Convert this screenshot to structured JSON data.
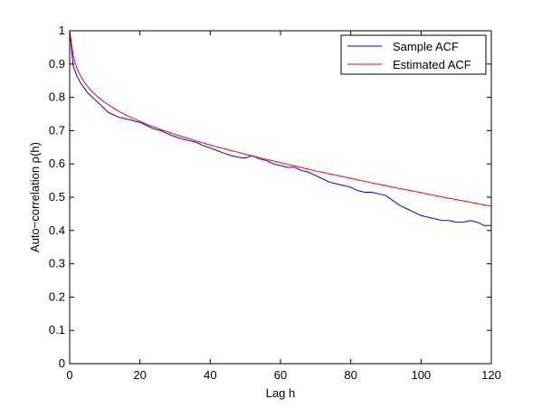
{
  "chart_data": {
    "type": "line",
    "title": "",
    "xlabel": "Lag h",
    "ylabel": "Auto−correlation ρ(h)",
    "xlim": [
      0,
      120
    ],
    "ylim": [
      0,
      1
    ],
    "xticks": [
      0,
      20,
      40,
      60,
      80,
      100,
      120
    ],
    "yticks": [
      0,
      0.1,
      0.2,
      0.3,
      0.4,
      0.5,
      0.6,
      0.7,
      0.8,
      0.9,
      1
    ],
    "grid": false,
    "legend_position": "top-right",
    "series": [
      {
        "name": "Sample ACF",
        "color": "#0000ff",
        "x": [
          0,
          1,
          2,
          3,
          4,
          5,
          6,
          7,
          8,
          9,
          10,
          11,
          12,
          13,
          14,
          15,
          16,
          17,
          18,
          19,
          20,
          22,
          24,
          26,
          28,
          30,
          32,
          34,
          36,
          38,
          40,
          42,
          44,
          46,
          48,
          50,
          52,
          54,
          56,
          58,
          60,
          62,
          64,
          66,
          68,
          70,
          72,
          74,
          76,
          78,
          80,
          82,
          84,
          86,
          88,
          90,
          92,
          94,
          96,
          98,
          100,
          102,
          104,
          106,
          108,
          110,
          112,
          114,
          116,
          118,
          120
        ],
        "y": [
          1.0,
          0.895,
          0.865,
          0.845,
          0.83,
          0.815,
          0.805,
          0.795,
          0.785,
          0.775,
          0.765,
          0.755,
          0.75,
          0.745,
          0.74,
          0.738,
          0.735,
          0.733,
          0.73,
          0.727,
          0.725,
          0.715,
          0.705,
          0.7,
          0.69,
          0.682,
          0.675,
          0.67,
          0.665,
          0.655,
          0.648,
          0.64,
          0.632,
          0.625,
          0.62,
          0.618,
          0.625,
          0.615,
          0.61,
          0.6,
          0.595,
          0.59,
          0.59,
          0.58,
          0.575,
          0.565,
          0.555,
          0.545,
          0.54,
          0.535,
          0.53,
          0.52,
          0.515,
          0.515,
          0.51,
          0.505,
          0.49,
          0.475,
          0.465,
          0.455,
          0.445,
          0.44,
          0.435,
          0.43,
          0.43,
          0.425,
          0.425,
          0.43,
          0.425,
          0.415,
          0.415
        ]
      },
      {
        "name": "Estimated ACF",
        "color": "#ff0000",
        "x": [
          0,
          1,
          2,
          3,
          4,
          5,
          6,
          7,
          8,
          9,
          10,
          12,
          14,
          16,
          18,
          20,
          22,
          24,
          26,
          28,
          30,
          32,
          34,
          36,
          38,
          40,
          42,
          44,
          46,
          48,
          50,
          52,
          54,
          56,
          58,
          60,
          62,
          64,
          66,
          68,
          70,
          72,
          74,
          76,
          78,
          80,
          82,
          84,
          86,
          88,
          90,
          92,
          94,
          96,
          98,
          100,
          102,
          104,
          106,
          108,
          110,
          112,
          114,
          116,
          118,
          120
        ],
        "y": [
          1.0,
          0.925,
          0.889,
          0.866,
          0.848,
          0.834,
          0.822,
          0.811,
          0.802,
          0.793,
          0.785,
          0.771,
          0.758,
          0.747,
          0.737,
          0.728,
          0.719,
          0.711,
          0.703,
          0.696,
          0.689,
          0.682,
          0.676,
          0.669,
          0.663,
          0.657,
          0.651,
          0.646,
          0.64,
          0.635,
          0.629,
          0.624,
          0.619,
          0.614,
          0.609,
          0.604,
          0.599,
          0.594,
          0.589,
          0.584,
          0.579,
          0.575,
          0.57,
          0.566,
          0.561,
          0.557,
          0.552,
          0.548,
          0.543,
          0.539,
          0.535,
          0.53,
          0.526,
          0.522,
          0.518,
          0.514,
          0.509,
          0.505,
          0.501,
          0.497,
          0.493,
          0.489,
          0.485,
          0.481,
          0.477,
          0.473
        ]
      }
    ]
  }
}
